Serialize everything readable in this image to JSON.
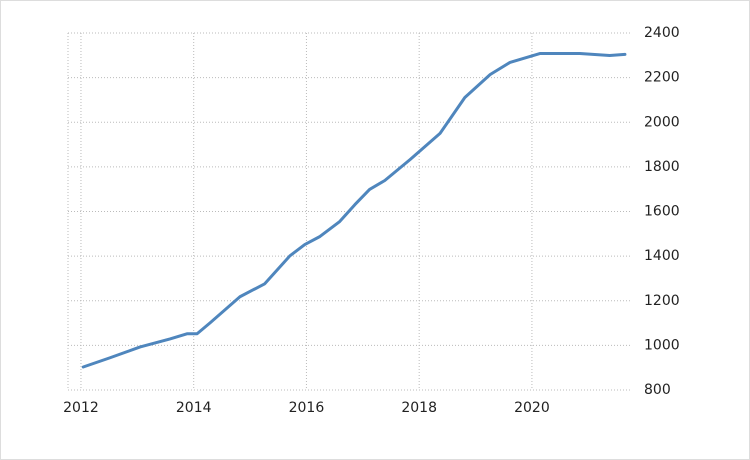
{
  "chart_data": {
    "type": "line",
    "x": [
      2012.04,
      2012.51,
      2013.05,
      2013.58,
      2013.88,
      2014.06,
      2014.29,
      2014.82,
      2015.26,
      2015.71,
      2015.97,
      2016.24,
      2016.59,
      2016.86,
      2017.12,
      2017.39,
      2017.84,
      2018.37,
      2018.81,
      2019.26,
      2019.61,
      2020.14,
      2020.5,
      2020.85,
      2021.38,
      2021.65
    ],
    "series": [
      {
        "color": "#4f86bd",
        "values": [
          903,
          944,
          993,
          1029,
          1052,
          1052,
          1101,
          1218,
          1276,
          1402,
          1452,
          1488,
          1555,
          1631,
          1699,
          1739,
          1833,
          1950,
          2111,
          2214,
          2268,
          2308,
          2308,
          2308,
          2299,
          2304
        ]
      }
    ],
    "xlim": [
      2011.77,
      2021.74
    ],
    "xticks": [
      2012,
      2014,
      2016,
      2018,
      2020
    ],
    "ylim": [
      800,
      2400
    ],
    "yticks": [
      800,
      1000,
      1200,
      1400,
      1600,
      1800,
      2000,
      2200,
      2400
    ],
    "grid": true
  }
}
